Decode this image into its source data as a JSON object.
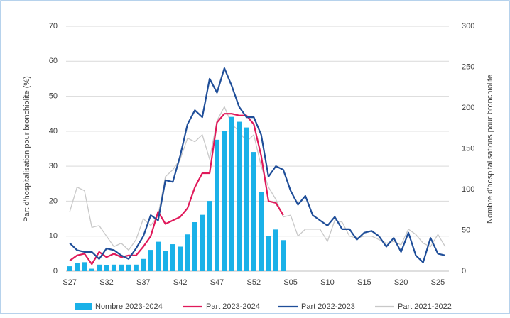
{
  "chart_data": {
    "type": "bar",
    "y_label": "Part d'hospitalisation pour bronchiolite (%)",
    "y2_label": "Nombre d'hospitalisations pour bronchiolite",
    "categories": [
      "S27",
      null,
      null,
      null,
      null,
      "S32",
      null,
      null,
      null,
      null,
      "S37",
      null,
      null,
      null,
      null,
      "S42",
      null,
      null,
      null,
      null,
      "S47",
      null,
      null,
      null,
      null,
      "S52",
      null,
      null,
      null,
      null,
      "S05",
      null,
      null,
      null,
      null,
      "S10",
      null,
      null,
      null,
      null,
      "S15",
      null,
      null,
      null,
      null,
      "S20",
      null,
      null,
      null,
      null,
      "S25",
      null
    ],
    "ylim": [
      0,
      70
    ],
    "yticks": [
      0,
      10,
      20,
      30,
      40,
      50,
      60,
      70
    ],
    "y2lim": [
      0,
      300
    ],
    "y2ticks": [
      0,
      50,
      100,
      150,
      200,
      250,
      300
    ],
    "grid": true,
    "legend": "bottom",
    "series": [
      {
        "name": "Nombre 2023-2024",
        "type": "bar",
        "axis": "y2",
        "color": "#1ab1e8",
        "values": [
          6,
          10,
          11,
          3,
          8,
          7,
          8,
          8,
          8,
          8,
          15,
          26,
          36,
          25,
          33,
          30,
          45,
          60,
          69,
          86,
          161,
          172,
          189,
          183,
          176,
          146,
          97,
          43,
          51,
          38,
          null,
          null,
          null,
          null,
          null,
          null,
          null,
          null,
          null,
          null,
          null,
          null,
          null,
          null,
          null,
          null,
          null,
          null,
          null,
          null,
          null,
          null
        ]
      },
      {
        "name": "Part 2023-2024",
        "type": "line",
        "color": "#e0195a",
        "values": [
          3,
          4.5,
          5,
          2,
          5.5,
          4,
          5,
          4,
          4.5,
          4.5,
          7,
          10,
          17,
          13.5,
          14.5,
          15.5,
          18,
          24,
          28,
          28,
          42.5,
          45,
          45,
          44.5,
          44.5,
          42,
          33,
          20,
          19.5,
          16,
          null,
          null,
          null,
          null,
          null,
          null,
          null,
          null,
          null,
          null,
          null,
          null,
          null,
          null,
          null,
          null,
          null,
          null,
          null,
          null,
          null,
          null
        ]
      },
      {
        "name": "Part 2022-2023",
        "type": "line",
        "color": "#1f4e99",
        "values": [
          8,
          6,
          5.5,
          5.5,
          3.5,
          6.5,
          6,
          4.5,
          3.5,
          6.5,
          10,
          16,
          14.5,
          26,
          25.5,
          33,
          42,
          46,
          44,
          55,
          51,
          58,
          53,
          47,
          44,
          44,
          39,
          27,
          30,
          29,
          23,
          19,
          21.5,
          16,
          14.5,
          13,
          15.5,
          12,
          12,
          9,
          11,
          11.5,
          10,
          7,
          9.5,
          5.5,
          11,
          4.5,
          2.5,
          9.5,
          5,
          4.5
        ]
      },
      {
        "name": "Part 2021-2022",
        "type": "line",
        "color": "#c8c8c8",
        "values": [
          17,
          24,
          23,
          12.5,
          13,
          10,
          7,
          8,
          6,
          9,
          15,
          13,
          16,
          27,
          29,
          32,
          38,
          37,
          39,
          32,
          43,
          47,
          42,
          40,
          37,
          39,
          30,
          24,
          20.5,
          15.5,
          16,
          10,
          12,
          12,
          12,
          8.5,
          14.5,
          14,
          10,
          9.5,
          10,
          10,
          9,
          8,
          8.5,
          7.5,
          12,
          10.5,
          8,
          7,
          10.5,
          7
        ]
      }
    ]
  }
}
